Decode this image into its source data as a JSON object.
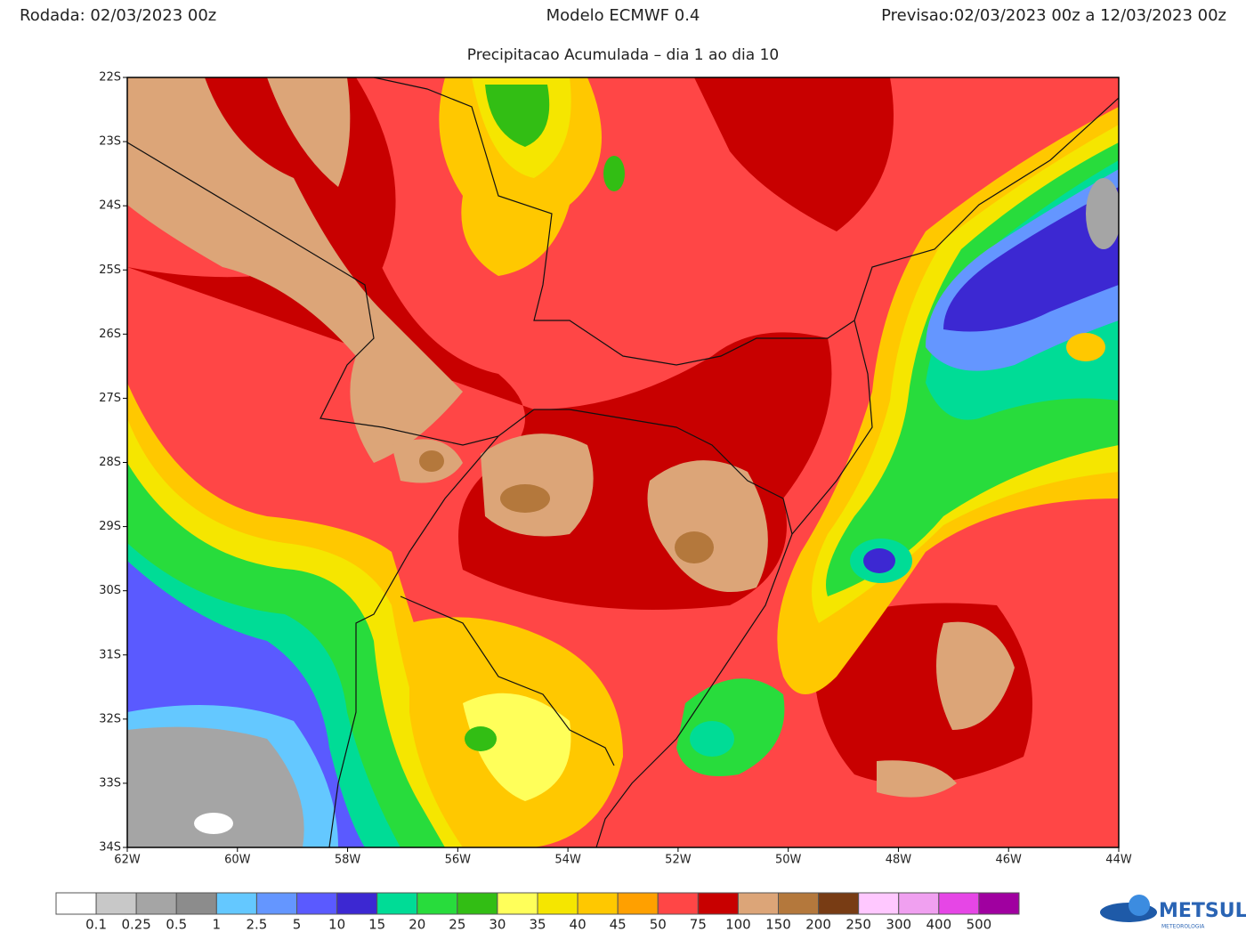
{
  "header": {
    "run": "Rodada: 02/03/2023 00z",
    "model": "Modelo ECMWF 0.4",
    "forecast": "Previsao:02/03/2023 00z a 12/03/2023 00z",
    "subtitle": "Precipitacao Acumulada – dia 1 ao dia 10"
  },
  "map": {
    "lat_labels": [
      "22S",
      "23S",
      "24S",
      "25S",
      "26S",
      "27S",
      "28S",
      "29S",
      "30S",
      "31S",
      "32S",
      "33S",
      "34S"
    ],
    "lon_labels": [
      "62W",
      "60W",
      "58W",
      "56W",
      "54W",
      "52W",
      "50W",
      "48W",
      "46W",
      "44W"
    ]
  },
  "legend": {
    "colors": [
      "#ffffff",
      "#c8c8c8",
      "#a5a5a5",
      "#8c8c8c",
      "#64c8ff",
      "#6496ff",
      "#5a5aff",
      "#3c28d2",
      "#00dc96",
      "#28dc3c",
      "#32be14",
      "#ffff5a",
      "#f5e600",
      "#ffc800",
      "#ffa000",
      "#ff4646",
      "#c80000",
      "#dca578",
      "#b4783c",
      "#783c14",
      "#ffc8ff",
      "#f0a0f0",
      "#e646e6",
      "#a000a0"
    ],
    "labels": [
      "0.1",
      "0.25",
      "0.5",
      "1",
      "2.5",
      "5",
      "10",
      "15",
      "20",
      "25",
      "30",
      "35",
      "40",
      "45",
      "50",
      "75",
      "100",
      "150",
      "200",
      "250",
      "300",
      "400",
      "500"
    ]
  },
  "logo": {
    "name": "METSUL",
    "tagline": "METEOROLOGIA"
  }
}
